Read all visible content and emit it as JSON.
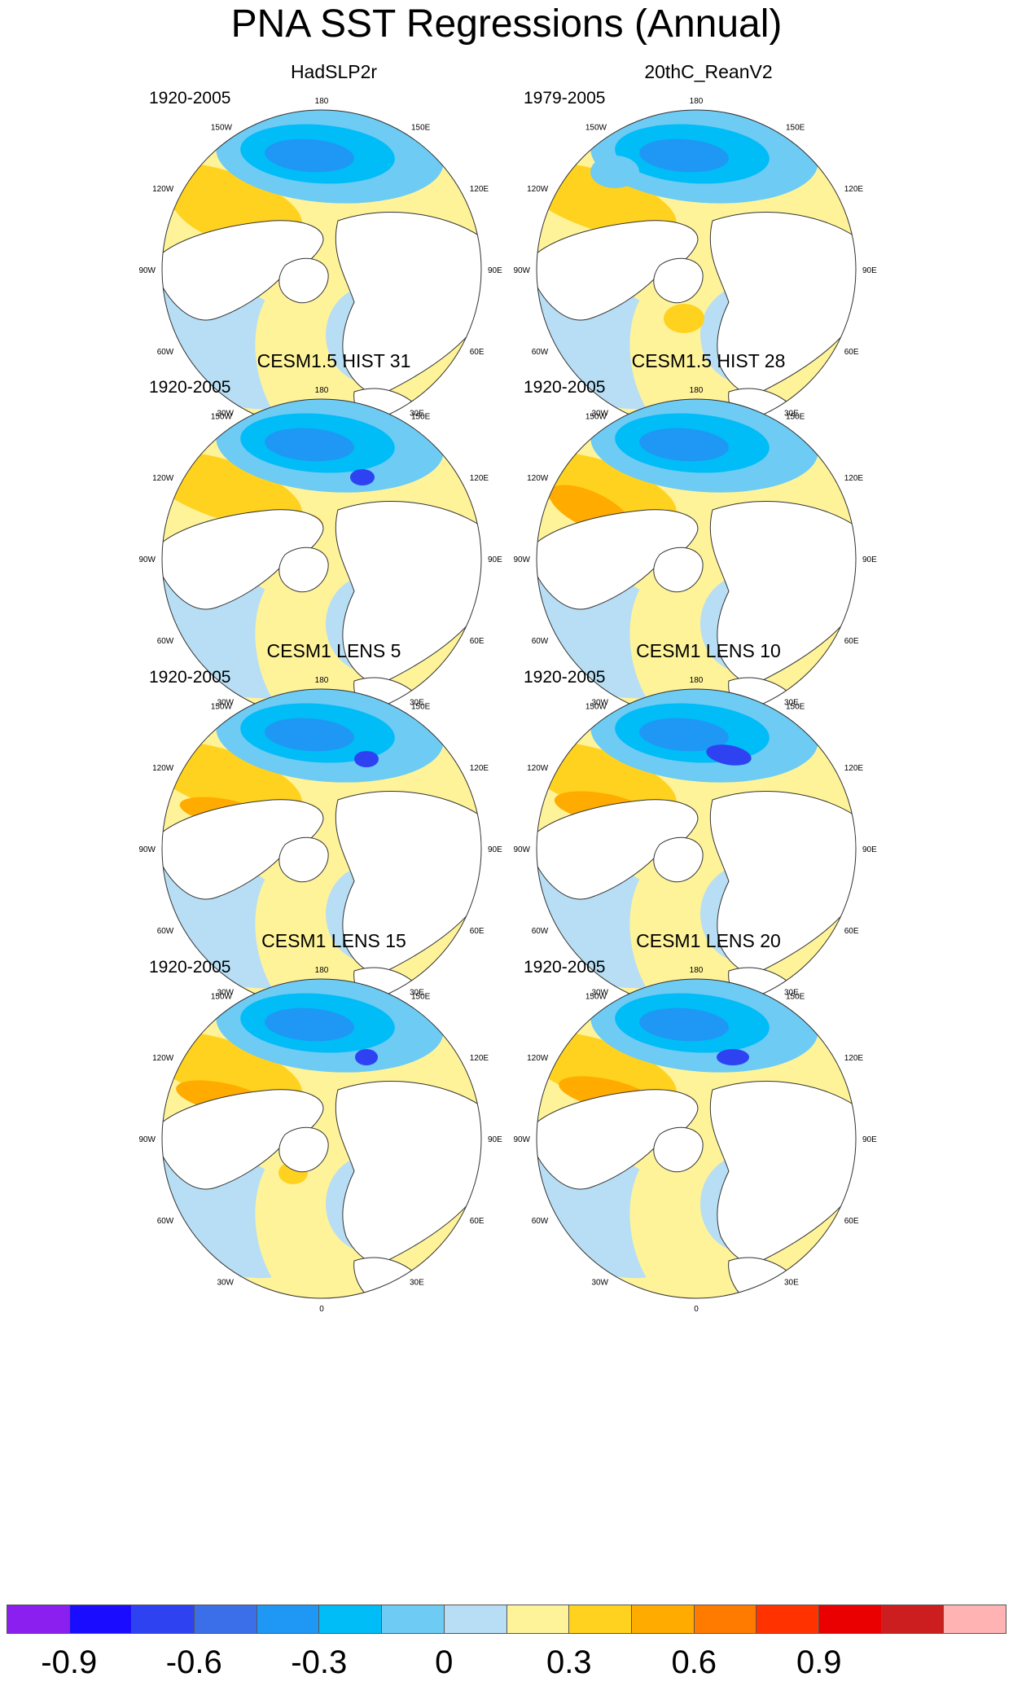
{
  "title": "PNA SST Regressions (Annual)",
  "panels": [
    {
      "name": "HadSLP2r",
      "period": "1920-2005"
    },
    {
      "name": "20thC_ReanV2",
      "period": "1979-2005"
    },
    {
      "name": "CESM1.5 HIST 31",
      "period": "1920-2005"
    },
    {
      "name": "CESM1.5 HIST 28",
      "period": "1920-2005"
    },
    {
      "name": "CESM1 LENS 5",
      "period": "1920-2005"
    },
    {
      "name": "CESM1 LENS 10",
      "period": "1920-2005"
    },
    {
      "name": "CESM1 LENS 15",
      "period": "1920-2005"
    },
    {
      "name": "CESM1 LENS 20",
      "period": "1920-2005"
    }
  ],
  "longitude_labels": [
    "180",
    "150E",
    "120E",
    "90E",
    "60E",
    "30E",
    "0",
    "30W",
    "60W",
    "90W",
    "120W",
    "150W"
  ],
  "colorbar": {
    "colors": [
      "#8a1ff0",
      "#1a0dff",
      "#2e42f2",
      "#3a6fe9",
      "#1f97f4",
      "#00bcf7",
      "#6ecbf3",
      "#b7def4",
      "#fff39a",
      "#ffd21f",
      "#ffab00",
      "#ff7b00",
      "#ff3200",
      "#ea0000",
      "#cc1e1e",
      "#ffb3b3"
    ],
    "labels": [
      "-0.9",
      "-0.6",
      "-0.3",
      "0",
      "0.3",
      "0.6",
      "0.9"
    ]
  }
}
